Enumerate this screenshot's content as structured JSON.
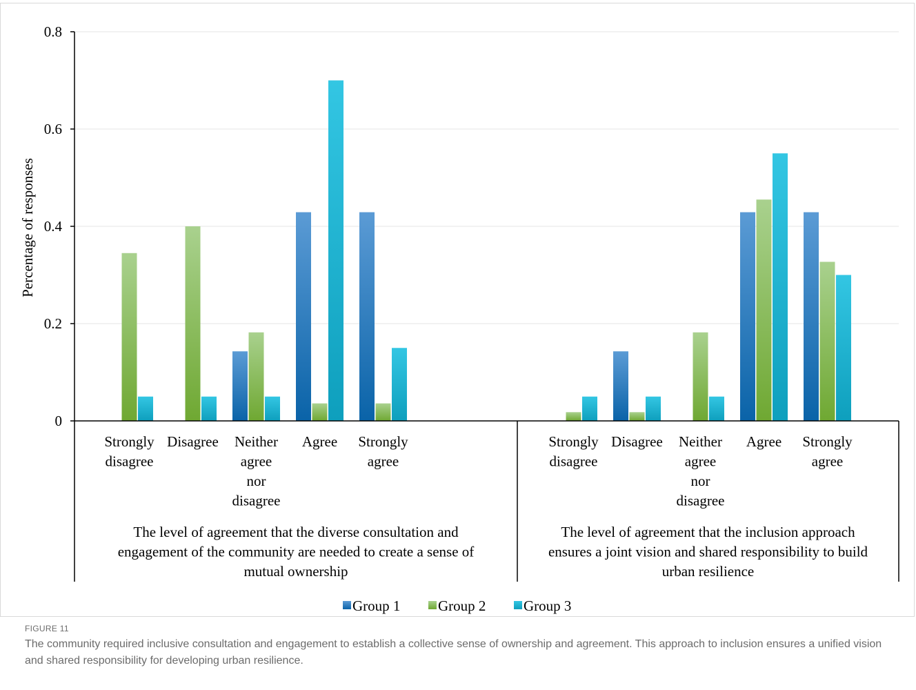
{
  "figure": {
    "label": "FIGURE 11",
    "caption": "The community required inclusive consultation and engagement to establish a collective sense of ownership and agreement. This approach to inclusion ensures a unified vision and shared responsibility for developing urban resilience."
  },
  "chart_data": {
    "type": "bar",
    "ylabel": "Percentage of responses",
    "ylim": [
      0,
      0.8
    ],
    "yticks": [
      0,
      0.2,
      0.4,
      0.6,
      0.8
    ],
    "yticklabels": [
      "0",
      "0.2",
      "0.4",
      "0.6",
      "0.8"
    ],
    "grid": true,
    "legend_position": "bottom",
    "colors": {
      "Group 1": "#2e75b6",
      "Group 2": "#8dbf4a",
      "Group 3": "#16b5d3"
    },
    "groups": [
      {
        "label": "The level of agreement that the diverse consultation and engagement of the community are needed to create a sense of mutual ownership",
        "label_lines": [
          "The level of agreement that the diverse consultation and",
          "engagement of the community are needed to create a sense of",
          "mutual ownership"
        ],
        "categories": [
          "Strongly disagree",
          "Disagree",
          "Neither agree nor disagree",
          "Agree",
          "Strongly agree"
        ],
        "series": [
          {
            "name": "Group 1",
            "values": [
              0,
              0,
              0.143,
              0.429,
              0.429
            ]
          },
          {
            "name": "Group 2",
            "values": [
              0.345,
              0.4,
              0.182,
              0.036,
              0.036
            ]
          },
          {
            "name": "Group 3",
            "values": [
              0.05,
              0.05,
              0.05,
              0.7,
              0.15
            ]
          }
        ]
      },
      {
        "label": "The level of agreement that the inclusion approach ensures a joint vision and shared responsibility to build urban resilience",
        "label_lines": [
          "The level of agreement that the inclusion approach",
          "ensures a joint vision and shared responsibility to build",
          "urban resilience"
        ],
        "categories": [
          "Strongly disagree",
          "Disagree",
          "Neither agree nor disagree",
          "Agree",
          "Strongly agree"
        ],
        "series": [
          {
            "name": "Group 1",
            "values": [
              0,
              0.143,
              0,
              0.429,
              0.429
            ]
          },
          {
            "name": "Group 2",
            "values": [
              0.018,
              0.018,
              0.182,
              0.455,
              0.327
            ]
          },
          {
            "name": "Group 3",
            "values": [
              0.05,
              0.05,
              0.05,
              0.55,
              0.3
            ]
          }
        ]
      }
    ],
    "category_label_lines": [
      [
        "Strongly",
        "disagree"
      ],
      [
        "Disagree"
      ],
      [
        "Neither",
        "agree",
        "nor",
        "disagree"
      ],
      [
        "Agree"
      ],
      [
        "Strongly",
        "agree"
      ]
    ],
    "legend": [
      "Group 1",
      "Group 2",
      "Group 3"
    ]
  }
}
